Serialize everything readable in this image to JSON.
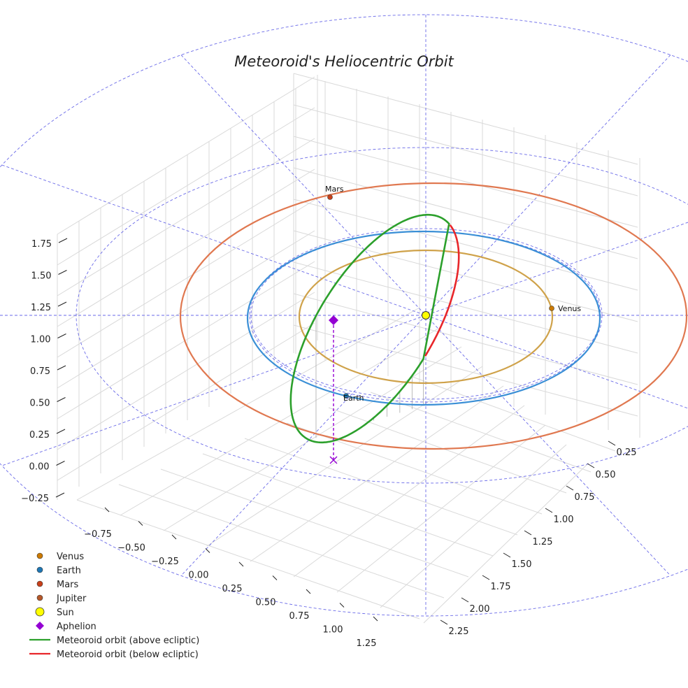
{
  "chart_data": {
    "type": "3d-line",
    "title": "Meteoroid's Heliocentric Orbit",
    "axes": {
      "x": {
        "ticks": [
          "−0.75",
          "−0.50",
          "−0.25",
          "0.00",
          "0.25",
          "0.50",
          "0.75",
          "1.00",
          "1.25"
        ],
        "range": [
          -0.75,
          1.25
        ]
      },
      "y": {
        "ticks": [
          "0.25",
          "0.50",
          "0.75",
          "1.00",
          "1.25",
          "1.50",
          "1.75",
          "2.00",
          "2.25"
        ],
        "range": [
          0.25,
          2.25
        ]
      },
      "z": {
        "ticks": [
          "−0.25",
          "0.00",
          "0.25",
          "0.50",
          "0.75",
          "1.00",
          "1.25",
          "1.50",
          "1.75"
        ],
        "range": [
          -0.25,
          1.75
        ]
      }
    },
    "planets": [
      {
        "name": "Venus",
        "label": "Venus",
        "color": "#cc7a00",
        "orbit_color": "#cfa24a"
      },
      {
        "name": "Earth",
        "label": "Earth",
        "color": "#1f77b4",
        "orbit_color": "#3a8fd6"
      },
      {
        "name": "Mars",
        "label": "Mars",
        "color": "#c8401a",
        "orbit_color": "#e07850"
      },
      {
        "name": "Jupiter",
        "label": "",
        "color": "#b5582a",
        "orbit_color": ""
      }
    ],
    "sun": {
      "label": "Sun",
      "color": "#ffff00"
    },
    "aphelion": {
      "label": "Aphelion",
      "color": "#9400d3"
    },
    "meteoroid": {
      "above_label": "Meteoroid orbit (above ecliptic)",
      "below_label": "Meteoroid orbit (below ecliptic)",
      "above_color": "#2ca02c",
      "below_color": "#e8262a"
    },
    "legend": [
      "Venus",
      "Earth",
      "Mars",
      "Jupiter",
      "Sun",
      "Aphelion",
      "Meteoroid orbit (above ecliptic)",
      "Meteoroid orbit (below ecliptic)"
    ],
    "legend_placement": "bottom-left",
    "guide_color": "#6a6ae8"
  }
}
